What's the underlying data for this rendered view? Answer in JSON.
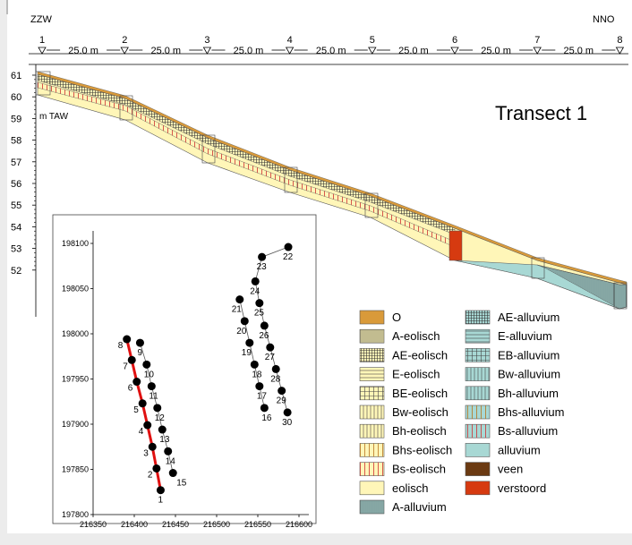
{
  "header": {
    "left_dir": "ZZW",
    "right_dir": "NNO"
  },
  "stations": [
    "1",
    "2",
    "3",
    "4",
    "5",
    "6",
    "7",
    "8"
  ],
  "spacing_label": "25.0 m",
  "axis": {
    "unit": "m TAW",
    "ticks": [
      "61",
      "60",
      "59",
      "58",
      "57",
      "56",
      "55",
      "54",
      "53",
      "52"
    ]
  },
  "transect_title": "Transect 1",
  "inset": {
    "y_ticks": [
      "198100",
      "198050",
      "198000",
      "197950",
      "197900",
      "197850",
      "197800"
    ],
    "x_ticks": [
      "216350",
      "216400",
      "216450",
      "216500",
      "216550",
      "216600"
    ],
    "points": [
      {
        "label": "1",
        "x": 216432,
        "y": 197827
      },
      {
        "label": "2",
        "x": 216427,
        "y": 197851
      },
      {
        "label": "3",
        "x": 216422,
        "y": 197875
      },
      {
        "label": "4",
        "x": 216416,
        "y": 197899
      },
      {
        "label": "5",
        "x": 216410,
        "y": 197923
      },
      {
        "label": "6",
        "x": 216403,
        "y": 197947
      },
      {
        "label": "7",
        "x": 216397,
        "y": 197971
      },
      {
        "label": "8",
        "x": 216391,
        "y": 197994
      },
      {
        "label": "9",
        "x": 216407,
        "y": 197990
      },
      {
        "label": "10",
        "x": 216415,
        "y": 197966
      },
      {
        "label": "11",
        "x": 216421,
        "y": 197942
      },
      {
        "label": "12",
        "x": 216428,
        "y": 197918
      },
      {
        "label": "13",
        "x": 216434,
        "y": 197894
      },
      {
        "label": "14",
        "x": 216441,
        "y": 197870
      },
      {
        "label": "15",
        "x": 216447,
        "y": 197846
      },
      {
        "label": "16",
        "x": 216558,
        "y": 197918
      },
      {
        "label": "17",
        "x": 216552,
        "y": 197942
      },
      {
        "label": "18",
        "x": 216546,
        "y": 197966
      },
      {
        "label": "19",
        "x": 216540,
        "y": 197990
      },
      {
        "label": "20",
        "x": 216534,
        "y": 198014
      },
      {
        "label": "21",
        "x": 216528,
        "y": 198038
      },
      {
        "label": "22",
        "x": 216587,
        "y": 198096
      },
      {
        "label": "23",
        "x": 216555,
        "y": 198085
      },
      {
        "label": "24",
        "x": 216547,
        "y": 198058
      },
      {
        "label": "25",
        "x": 216552,
        "y": 198034
      },
      {
        "label": "26",
        "x": 216558,
        "y": 198009
      },
      {
        "label": "27",
        "x": 216565,
        "y": 197985
      },
      {
        "label": "28",
        "x": 216572,
        "y": 197961
      },
      {
        "label": "29",
        "x": 216579,
        "y": 197937
      },
      {
        "label": "30",
        "x": 216586,
        "y": 197913
      }
    ]
  },
  "legend": {
    "left": [
      {
        "label": "O",
        "fill": "#d99a3a",
        "pattern": "none"
      },
      {
        "label": "A-eolisch",
        "fill": "#fff6b8",
        "pattern": "vert-dense"
      },
      {
        "label": "AE-eolisch",
        "fill": "#fff6b8",
        "pattern": "grid-dense"
      },
      {
        "label": "E-eolisch",
        "fill": "#fff6b8",
        "pattern": "horiz"
      },
      {
        "label": "BE-eolisch",
        "fill": "#fff6b8",
        "pattern": "grid"
      },
      {
        "label": "Bw-eolisch",
        "fill": "#fff6b8",
        "pattern": "vert"
      },
      {
        "label": "Bh-eolisch",
        "fill": "#fff6b8",
        "pattern": "vert"
      },
      {
        "label": "Bhs-eolisch",
        "fill": "#fff6b8",
        "pattern": "vert-brown"
      },
      {
        "label": "Bs-eolisch",
        "fill": "#fff6b8",
        "pattern": "vert-red"
      },
      {
        "label": "eolisch",
        "fill": "#fff6b8",
        "pattern": "none"
      },
      {
        "label": "A-alluvium",
        "fill": "#a8d8d4",
        "pattern": "vert-dense"
      }
    ],
    "right": [
      {
        "label": "AE-alluvium",
        "fill": "#a8d8d4",
        "pattern": "grid-dense"
      },
      {
        "label": "E-alluvium",
        "fill": "#a8d8d4",
        "pattern": "horiz"
      },
      {
        "label": "EB-alluvium",
        "fill": "#a8d8d4",
        "pattern": "grid"
      },
      {
        "label": "Bw-alluvium",
        "fill": "#a8d8d4",
        "pattern": "vert"
      },
      {
        "label": "Bh-alluvium",
        "fill": "#a8d8d4",
        "pattern": "vert"
      },
      {
        "label": "Bhs-alluvium",
        "fill": "#a8d8d4",
        "pattern": "vert-brown"
      },
      {
        "label": "Bs-alluvium",
        "fill": "#a8d8d4",
        "pattern": "vert-red"
      },
      {
        "label": "alluvium",
        "fill": "#a8d8d4",
        "pattern": "none"
      },
      {
        "label": "veen",
        "fill": "#6b3a12",
        "pattern": "none"
      },
      {
        "label": "verstoord",
        "fill": "#d63a10",
        "pattern": "none"
      }
    ]
  }
}
